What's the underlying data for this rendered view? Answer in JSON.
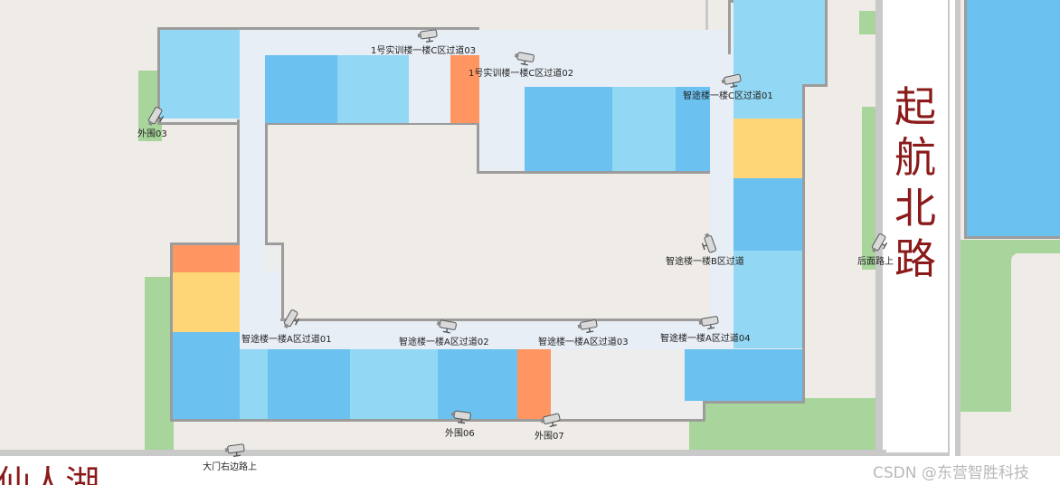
{
  "map": {
    "roads": {
      "east": "起航北路",
      "south_partial": "仙人湖"
    },
    "watermark": "CSDN @东营智胜科技",
    "colors": {
      "background": "#efebe7",
      "room_blue": "#6bc1f0",
      "room_light_blue": "#92d7f3",
      "room_orange": "#ff9661",
      "room_yellow": "#fed577",
      "corridor": "#e8eef6",
      "green_space": "#a7d59b",
      "road_label": "#8b1a1a"
    },
    "cameras": [
      {
        "id": "c1",
        "label": "1号实训楼一楼C区过道03",
        "icon": "camera-icon"
      },
      {
        "id": "c2",
        "label": "1号实训楼一楼C区过道02",
        "icon": "camera-icon"
      },
      {
        "id": "c3",
        "label": "智途楼一楼C区过道01",
        "icon": "camera-icon"
      },
      {
        "id": "c4",
        "label": "外围03",
        "icon": "camera-icon"
      },
      {
        "id": "c5",
        "label": "智途楼一楼B区过道",
        "icon": "camera-icon"
      },
      {
        "id": "c6",
        "label": "后面路上",
        "icon": "camera-icon"
      },
      {
        "id": "c7",
        "label": "智途楼一楼A区过道01",
        "icon": "camera-icon"
      },
      {
        "id": "c8",
        "label": "智途楼一楼A区过道02",
        "icon": "camera-icon"
      },
      {
        "id": "c9",
        "label": "智途楼一楼A区过道03",
        "icon": "camera-icon"
      },
      {
        "id": "c10",
        "label": "智途楼一楼A区过道04",
        "icon": "camera-icon"
      },
      {
        "id": "c11",
        "label": "外围06",
        "icon": "camera-icon"
      },
      {
        "id": "c12",
        "label": "外围07",
        "icon": "camera-icon"
      },
      {
        "id": "c13",
        "label": "大门右边路上",
        "icon": "camera-icon"
      }
    ]
  }
}
